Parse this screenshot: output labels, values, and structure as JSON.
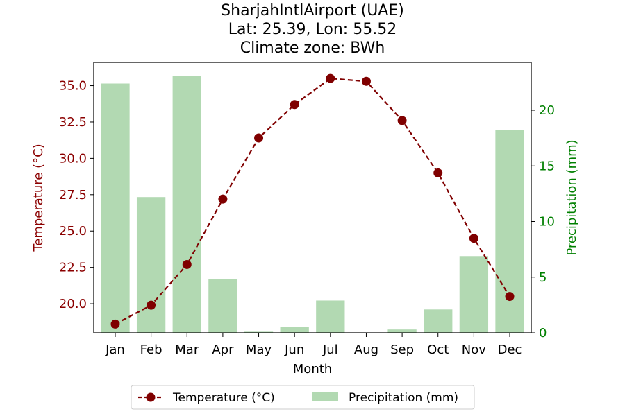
{
  "chart_data": {
    "type": "bar+line",
    "title_lines": [
      "SharjahIntlAirport (UAE)",
      "Lat: 25.39, Lon: 55.52",
      "Climate zone: BWh"
    ],
    "xlabel": "Month",
    "ylabel_left": "Temperature (°C)",
    "ylabel_right": "Precipitation (mm)",
    "categories": [
      "Jan",
      "Feb",
      "Mar",
      "Apr",
      "May",
      "Jun",
      "Jul",
      "Aug",
      "Sep",
      "Oct",
      "Nov",
      "Dec"
    ],
    "temperature": [
      18.6,
      19.9,
      22.7,
      27.2,
      31.4,
      33.7,
      35.5,
      35.3,
      32.6,
      29.0,
      24.5,
      20.5
    ],
    "precipitation": [
      22.4,
      12.2,
      23.1,
      4.8,
      0.1,
      0.5,
      2.9,
      0.0,
      0.3,
      2.1,
      6.9,
      18.2
    ],
    "ylim_left": [
      18.0,
      36.6
    ],
    "ylim_right": [
      0,
      24.3
    ],
    "yticks_left": [
      "20.0",
      "22.5",
      "25.0",
      "27.5",
      "30.0",
      "32.5",
      "35.0"
    ],
    "yticks_right": [
      "0",
      "5",
      "10",
      "15",
      "20"
    ],
    "legend": {
      "placement": "bottom-center",
      "items": [
        "Temperature (°C)",
        "Precipitation (mm)"
      ]
    },
    "colors": {
      "temperature": "#800000",
      "temperature_axis": "#8b0000",
      "precipitation": "#b2d9b2",
      "precipitation_axis": "#008000"
    },
    "grid": false
  }
}
